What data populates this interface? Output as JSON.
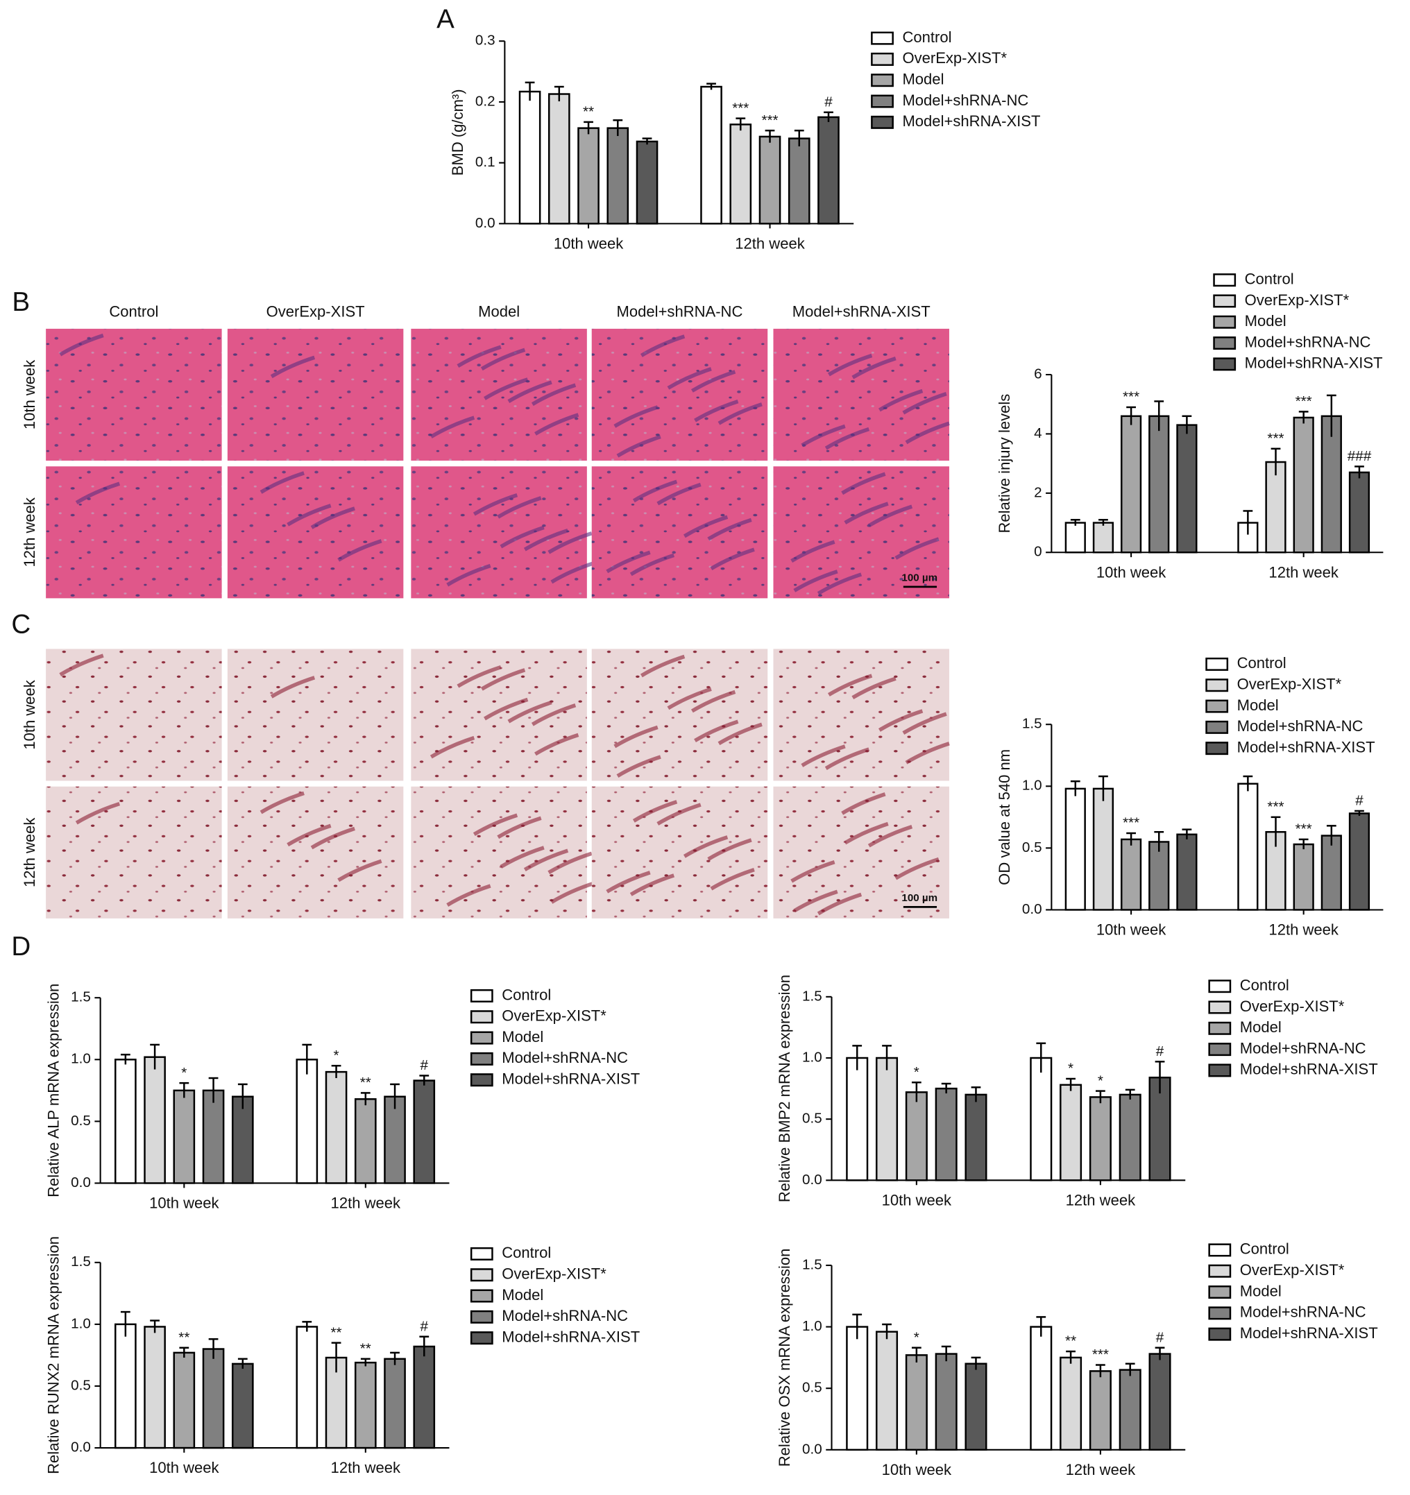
{
  "panels": [
    "A",
    "B",
    "C",
    "D"
  ],
  "histology": {
    "columns": [
      "Control",
      "OverExp-XIST",
      "Model",
      "Model+shRNA-NC",
      "Model+shRNA-XIST"
    ],
    "rows": [
      "10th week",
      "12th week"
    ],
    "scale_bar": "100 µm"
  },
  "chart_data": [
    {
      "type": "bar",
      "ylabel": "BMD (g/cm³)",
      "categories": [
        "10th week",
        "12th week"
      ],
      "ylim": [
        0,
        0.3
      ],
      "yticks": [
        {
          "value": 0,
          "label": "0.0"
        },
        0.1,
        0.2,
        0.3
      ],
      "legend": "right",
      "series": [
        {
          "name": "Control",
          "color": "#ffffff",
          "values": [
            0.217,
            0.225
          ],
          "errors": [
            0.015,
            0.005
          ],
          "annotations": [
            null,
            null
          ]
        },
        {
          "name": "OverExp-XIST*",
          "color": "#d9d9d9",
          "values": [
            0.213,
            0.163
          ],
          "errors": [
            0.012,
            0.01
          ],
          "annotations": [
            null,
            "***"
          ]
        },
        {
          "name": "Model",
          "color": "#a6a6a6",
          "values": [
            0.157,
            0.143
          ],
          "errors": [
            0.01,
            0.01
          ],
          "annotations": [
            "**",
            "***"
          ]
        },
        {
          "name": "Model+shRNA-NC",
          "color": "#808080",
          "values": [
            0.157,
            0.14
          ],
          "errors": [
            0.013,
            0.013
          ],
          "annotations": [
            null,
            null
          ]
        },
        {
          "name": "Model+shRNA-XIST",
          "color": "#595959",
          "values": [
            0.135,
            0.175
          ],
          "errors": [
            0.005,
            0.008
          ],
          "annotations": [
            null,
            "#"
          ]
        }
      ]
    },
    {
      "type": "bar",
      "ylabel": "Relative injury levels",
      "categories": [
        "10th week",
        "12th week"
      ],
      "ylim": [
        0,
        6
      ],
      "yticks": [
        0,
        2,
        4,
        6
      ],
      "legend": "right",
      "series": [
        {
          "name": "Control",
          "color": "#ffffff",
          "values": [
            1.0,
            1.0
          ],
          "errors": [
            0.1,
            0.4
          ],
          "annotations": [
            null,
            null
          ]
        },
        {
          "name": "OverExp-XIST*",
          "color": "#d9d9d9",
          "values": [
            1.0,
            3.05
          ],
          "errors": [
            0.1,
            0.45
          ],
          "annotations": [
            null,
            "***"
          ]
        },
        {
          "name": "Model",
          "color": "#a6a6a6",
          "values": [
            4.6,
            4.55
          ],
          "errors": [
            0.3,
            0.2
          ],
          "annotations": [
            "***",
            "***"
          ]
        },
        {
          "name": "Model+shRNA-NC",
          "color": "#808080",
          "values": [
            4.6,
            4.6
          ],
          "errors": [
            0.5,
            0.7
          ],
          "annotations": [
            null,
            null
          ]
        },
        {
          "name": "Model+shRNA-XIST",
          "color": "#595959",
          "values": [
            4.3,
            2.7
          ],
          "errors": [
            0.3,
            0.2
          ],
          "annotations": [
            null,
            "###"
          ]
        }
      ]
    },
    {
      "type": "bar",
      "ylabel": "OD value at 540 nm",
      "categories": [
        "10th week",
        "12th week"
      ],
      "ylim": [
        0,
        1.5
      ],
      "yticks": [
        {
          "value": 0,
          "label": "0.0"
        },
        0.5,
        {
          "value": 1,
          "label": "1.0"
        },
        1.5
      ],
      "legend": "right",
      "series": [
        {
          "name": "Control",
          "color": "#ffffff",
          "values": [
            0.98,
            1.02
          ],
          "errors": [
            0.06,
            0.06
          ],
          "annotations": [
            null,
            null
          ]
        },
        {
          "name": "OverExp-XIST*",
          "color": "#d9d9d9",
          "values": [
            0.98,
            0.63
          ],
          "errors": [
            0.1,
            0.12
          ],
          "annotations": [
            null,
            "***"
          ]
        },
        {
          "name": "Model",
          "color": "#a6a6a6",
          "values": [
            0.57,
            0.53
          ],
          "errors": [
            0.05,
            0.04
          ],
          "annotations": [
            "***",
            "***"
          ]
        },
        {
          "name": "Model+shRNA-NC",
          "color": "#808080",
          "values": [
            0.55,
            0.6
          ],
          "errors": [
            0.08,
            0.08
          ],
          "annotations": [
            null,
            null
          ]
        },
        {
          "name": "Model+shRNA-XIST",
          "color": "#595959",
          "values": [
            0.61,
            0.78
          ],
          "errors": [
            0.04,
            0.02
          ],
          "annotations": [
            null,
            "#"
          ]
        }
      ]
    },
    {
      "type": "bar",
      "ylabel": "Relative ALP mRNA expression",
      "categories": [
        "10th week",
        "12th week"
      ],
      "ylim": [
        0,
        1.5
      ],
      "yticks": [
        {
          "value": 0,
          "label": "0.0"
        },
        0.5,
        {
          "value": 1,
          "label": "1.0"
        },
        1.5
      ],
      "legend": "right",
      "series": [
        {
          "name": "Control",
          "color": "#ffffff",
          "values": [
            1.0,
            1.0
          ],
          "errors": [
            0.04,
            0.12
          ],
          "annotations": [
            null,
            null
          ]
        },
        {
          "name": "OverExp-XIST*",
          "color": "#d9d9d9",
          "values": [
            1.02,
            0.9
          ],
          "errors": [
            0.1,
            0.05
          ],
          "annotations": [
            null,
            "*"
          ]
        },
        {
          "name": "Model",
          "color": "#a6a6a6",
          "values": [
            0.75,
            0.68
          ],
          "errors": [
            0.06,
            0.05
          ],
          "annotations": [
            "*",
            "**"
          ]
        },
        {
          "name": "Model+shRNA-NC",
          "color": "#808080",
          "values": [
            0.75,
            0.7
          ],
          "errors": [
            0.1,
            0.1
          ],
          "annotations": [
            null,
            null
          ]
        },
        {
          "name": "Model+shRNA-XIST",
          "color": "#595959",
          "values": [
            0.7,
            0.83
          ],
          "errors": [
            0.1,
            0.04
          ],
          "annotations": [
            null,
            "#"
          ]
        }
      ]
    },
    {
      "type": "bar",
      "ylabel": "Relative BMP2 mRNA expression",
      "categories": [
        "10th week",
        "12th week"
      ],
      "ylim": [
        0,
        1.5
      ],
      "yticks": [
        {
          "value": 0,
          "label": "0.0"
        },
        0.5,
        {
          "value": 1,
          "label": "1.0"
        },
        1.5
      ],
      "legend": "right",
      "series": [
        {
          "name": "Control",
          "color": "#ffffff",
          "values": [
            1.0,
            1.0
          ],
          "errors": [
            0.1,
            0.12
          ],
          "annotations": [
            null,
            null
          ]
        },
        {
          "name": "OverExp-XIST*",
          "color": "#d9d9d9",
          "values": [
            1.0,
            0.78
          ],
          "errors": [
            0.1,
            0.05
          ],
          "annotations": [
            null,
            "*"
          ]
        },
        {
          "name": "Model",
          "color": "#a6a6a6",
          "values": [
            0.72,
            0.68
          ],
          "errors": [
            0.08,
            0.05
          ],
          "annotations": [
            "*",
            "*"
          ]
        },
        {
          "name": "Model+shRNA-NC",
          "color": "#808080",
          "values": [
            0.75,
            0.7
          ],
          "errors": [
            0.04,
            0.04
          ],
          "annotations": [
            null,
            null
          ]
        },
        {
          "name": "Model+shRNA-XIST",
          "color": "#595959",
          "values": [
            0.7,
            0.84
          ],
          "errors": [
            0.06,
            0.13
          ],
          "annotations": [
            null,
            "#"
          ]
        }
      ]
    },
    {
      "type": "bar",
      "ylabel": "Relative RUNX2 mRNA expression",
      "categories": [
        "10th week",
        "12th week"
      ],
      "ylim": [
        0,
        1.5
      ],
      "yticks": [
        {
          "value": 0,
          "label": "0.0"
        },
        0.5,
        {
          "value": 1,
          "label": "1.0"
        },
        1.5
      ],
      "legend": "right",
      "series": [
        {
          "name": "Control",
          "color": "#ffffff",
          "values": [
            1.0,
            0.98
          ],
          "errors": [
            0.1,
            0.04
          ],
          "annotations": [
            null,
            null
          ]
        },
        {
          "name": "OverExp-XIST*",
          "color": "#d9d9d9",
          "values": [
            0.98,
            0.73
          ],
          "errors": [
            0.05,
            0.12
          ],
          "annotations": [
            null,
            "**"
          ]
        },
        {
          "name": "Model",
          "color": "#a6a6a6",
          "values": [
            0.77,
            0.69
          ],
          "errors": [
            0.04,
            0.03
          ],
          "annotations": [
            "**",
            "**"
          ]
        },
        {
          "name": "Model+shRNA-NC",
          "color": "#808080",
          "values": [
            0.8,
            0.72
          ],
          "errors": [
            0.08,
            0.05
          ],
          "annotations": [
            null,
            null
          ]
        },
        {
          "name": "Model+shRNA-XIST",
          "color": "#595959",
          "values": [
            0.68,
            0.82
          ],
          "errors": [
            0.04,
            0.08
          ],
          "annotations": [
            null,
            "#"
          ]
        }
      ]
    },
    {
      "type": "bar",
      "ylabel": "Relative OSX mRNA expression",
      "categories": [
        "10th week",
        "12th week"
      ],
      "ylim": [
        0,
        1.5
      ],
      "yticks": [
        {
          "value": 0,
          "label": "0.0"
        },
        0.5,
        {
          "value": 1,
          "label": "1.0"
        },
        1.5
      ],
      "legend": "right",
      "series": [
        {
          "name": "Control",
          "color": "#ffffff",
          "values": [
            1.0,
            1.0
          ],
          "errors": [
            0.1,
            0.08
          ],
          "annotations": [
            null,
            null
          ]
        },
        {
          "name": "OverExp-XIST*",
          "color": "#d9d9d9",
          "values": [
            0.96,
            0.75
          ],
          "errors": [
            0.06,
            0.05
          ],
          "annotations": [
            null,
            "**"
          ]
        },
        {
          "name": "Model",
          "color": "#a6a6a6",
          "values": [
            0.77,
            0.64
          ],
          "errors": [
            0.06,
            0.05
          ],
          "annotations": [
            "*",
            "***"
          ]
        },
        {
          "name": "Model+shRNA-NC",
          "color": "#808080",
          "values": [
            0.78,
            0.65
          ],
          "errors": [
            0.06,
            0.05
          ],
          "annotations": [
            null,
            null
          ]
        },
        {
          "name": "Model+shRNA-XIST",
          "color": "#595959",
          "values": [
            0.7,
            0.78
          ],
          "errors": [
            0.05,
            0.05
          ],
          "annotations": [
            null,
            "#"
          ]
        }
      ]
    }
  ]
}
